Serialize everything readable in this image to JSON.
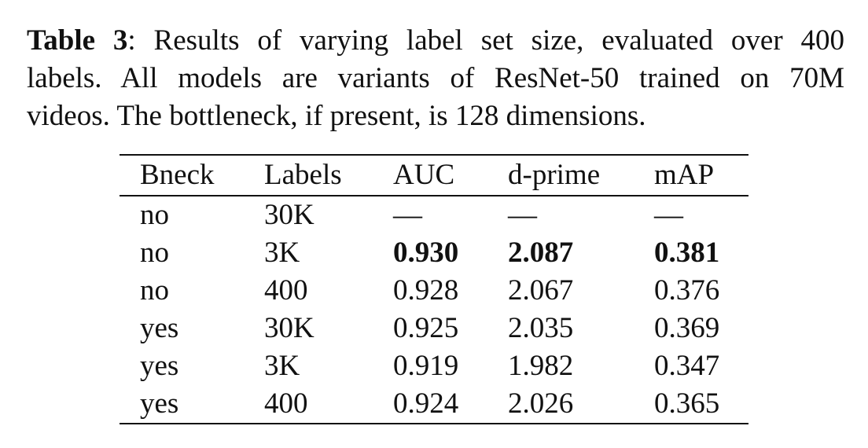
{
  "caption": {
    "label": "Table 3",
    "lines": [
      ": Results of varying label set size, evaluated over 400",
      "labels.  All models are variants of ResNet-50 trained on 70M",
      "videos. The bottleneck, if present, is 128 dimensions."
    ]
  },
  "table": {
    "headers": [
      "Bneck",
      "Labels",
      "AUC",
      "d-prime",
      "mAP"
    ],
    "rows": [
      {
        "cells": [
          "no",
          "30K",
          "—",
          "—",
          "—"
        ],
        "bold": [
          false,
          false,
          false,
          false,
          false
        ]
      },
      {
        "cells": [
          "no",
          "3K",
          "0.930",
          "2.087",
          "0.381"
        ],
        "bold": [
          false,
          false,
          true,
          true,
          true
        ]
      },
      {
        "cells": [
          "no",
          "400",
          "0.928",
          "2.067",
          "0.376"
        ],
        "bold": [
          false,
          false,
          false,
          false,
          false
        ]
      },
      {
        "cells": [
          "yes",
          "30K",
          "0.925",
          "2.035",
          "0.369"
        ],
        "bold": [
          false,
          false,
          false,
          false,
          false
        ]
      },
      {
        "cells": [
          "yes",
          "3K",
          "0.919",
          "1.982",
          "0.347"
        ],
        "bold": [
          false,
          false,
          false,
          false,
          false
        ]
      },
      {
        "cells": [
          "yes",
          "400",
          "0.924",
          "2.026",
          "0.365"
        ],
        "bold": [
          false,
          false,
          false,
          false,
          false
        ]
      }
    ]
  }
}
